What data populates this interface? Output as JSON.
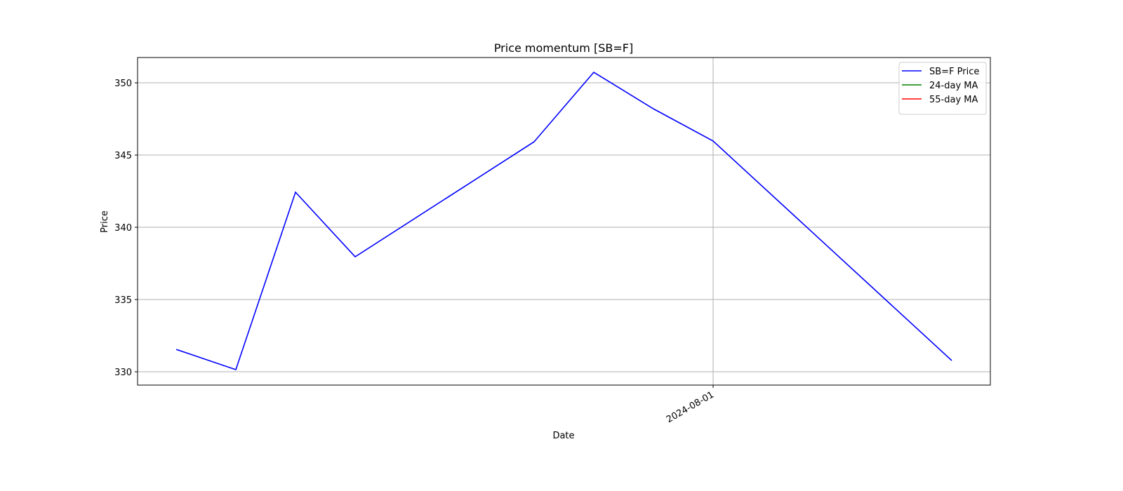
{
  "chart_data": {
    "type": "line",
    "title": "Price momentum [SB=F]",
    "xlabel": "Date",
    "ylabel": "Price",
    "x": [
      "2024-07-23",
      "2024-07-24",
      "2024-07-25",
      "2024-07-26",
      "2024-07-29",
      "2024-07-30",
      "2024-07-31",
      "2024-08-01",
      "2024-08-05"
    ],
    "series": [
      {
        "name": "SB=F Price",
        "color": "#0000ff",
        "values": [
          331.55,
          330.15,
          342.43,
          337.96,
          345.92,
          350.73,
          348.2,
          345.97,
          330.78
        ]
      },
      {
        "name": "24-day MA",
        "color": "#008000",
        "values": [
          null,
          null,
          null,
          null,
          null,
          null,
          null,
          null,
          null
        ]
      },
      {
        "name": "55-day MA",
        "color": "#ff0000",
        "values": [
          null,
          null,
          null,
          null,
          null,
          null,
          null,
          null,
          null
        ]
      }
    ],
    "xlim": [
      "2024-07-22T08:28Z",
      "2024-08-05T15:32Z"
    ],
    "xticks": [
      "2024-08-01"
    ],
    "ylim": [
      329.08,
      351.75
    ],
    "yticks": [
      330,
      335,
      340,
      345,
      350
    ],
    "grid": true,
    "legend": "upper right"
  }
}
